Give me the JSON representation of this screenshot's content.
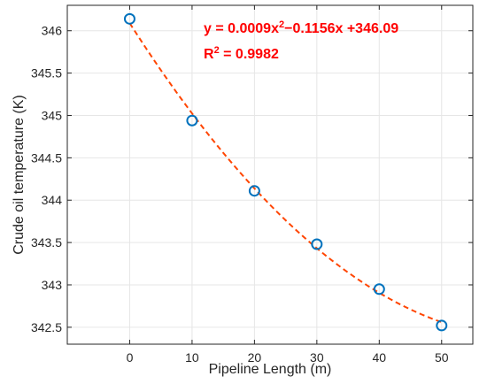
{
  "chart_data": {
    "type": "scatter",
    "title": "",
    "xlabel": "Pipeline Length (m)",
    "ylabel": "Crude oil temperature (K)",
    "xlim": [
      -10,
      55
    ],
    "ylim": [
      342.3,
      346.3
    ],
    "xticks": [
      0,
      10,
      20,
      30,
      40,
      50
    ],
    "yticks": [
      342.5,
      343,
      343.5,
      344,
      344.5,
      345,
      345.5,
      346
    ],
    "xtick_labels": [
      "0",
      "10",
      "20",
      "30",
      "40",
      "50"
    ],
    "ytick_labels": [
      "342.5",
      "343",
      "343.5",
      "344",
      "344.5",
      "345",
      "345.5",
      "346"
    ],
    "grid": true,
    "series": [
      {
        "kind": "points",
        "color": "#0072BD",
        "marker": "open-circle",
        "x": [
          0,
          10,
          20,
          30,
          40,
          50
        ],
        "y": [
          346.14,
          344.94,
          344.11,
          343.48,
          342.95,
          342.52
        ]
      },
      {
        "kind": "fit-line",
        "color": "#FF4500",
        "style": "dashed",
        "coefficients": [
          0.0009,
          -0.1156,
          346.09
        ],
        "x_range": [
          0,
          50
        ]
      }
    ],
    "annotations": {
      "equation_prefix": "y = 0.0009x",
      "equation_exp": "2",
      "equation_suffix": "−0.1156x +346.09",
      "r2_prefix": "R",
      "r2_exp": "2",
      "r2_suffix": " = 0.9982",
      "color": "#FF0000"
    }
  }
}
